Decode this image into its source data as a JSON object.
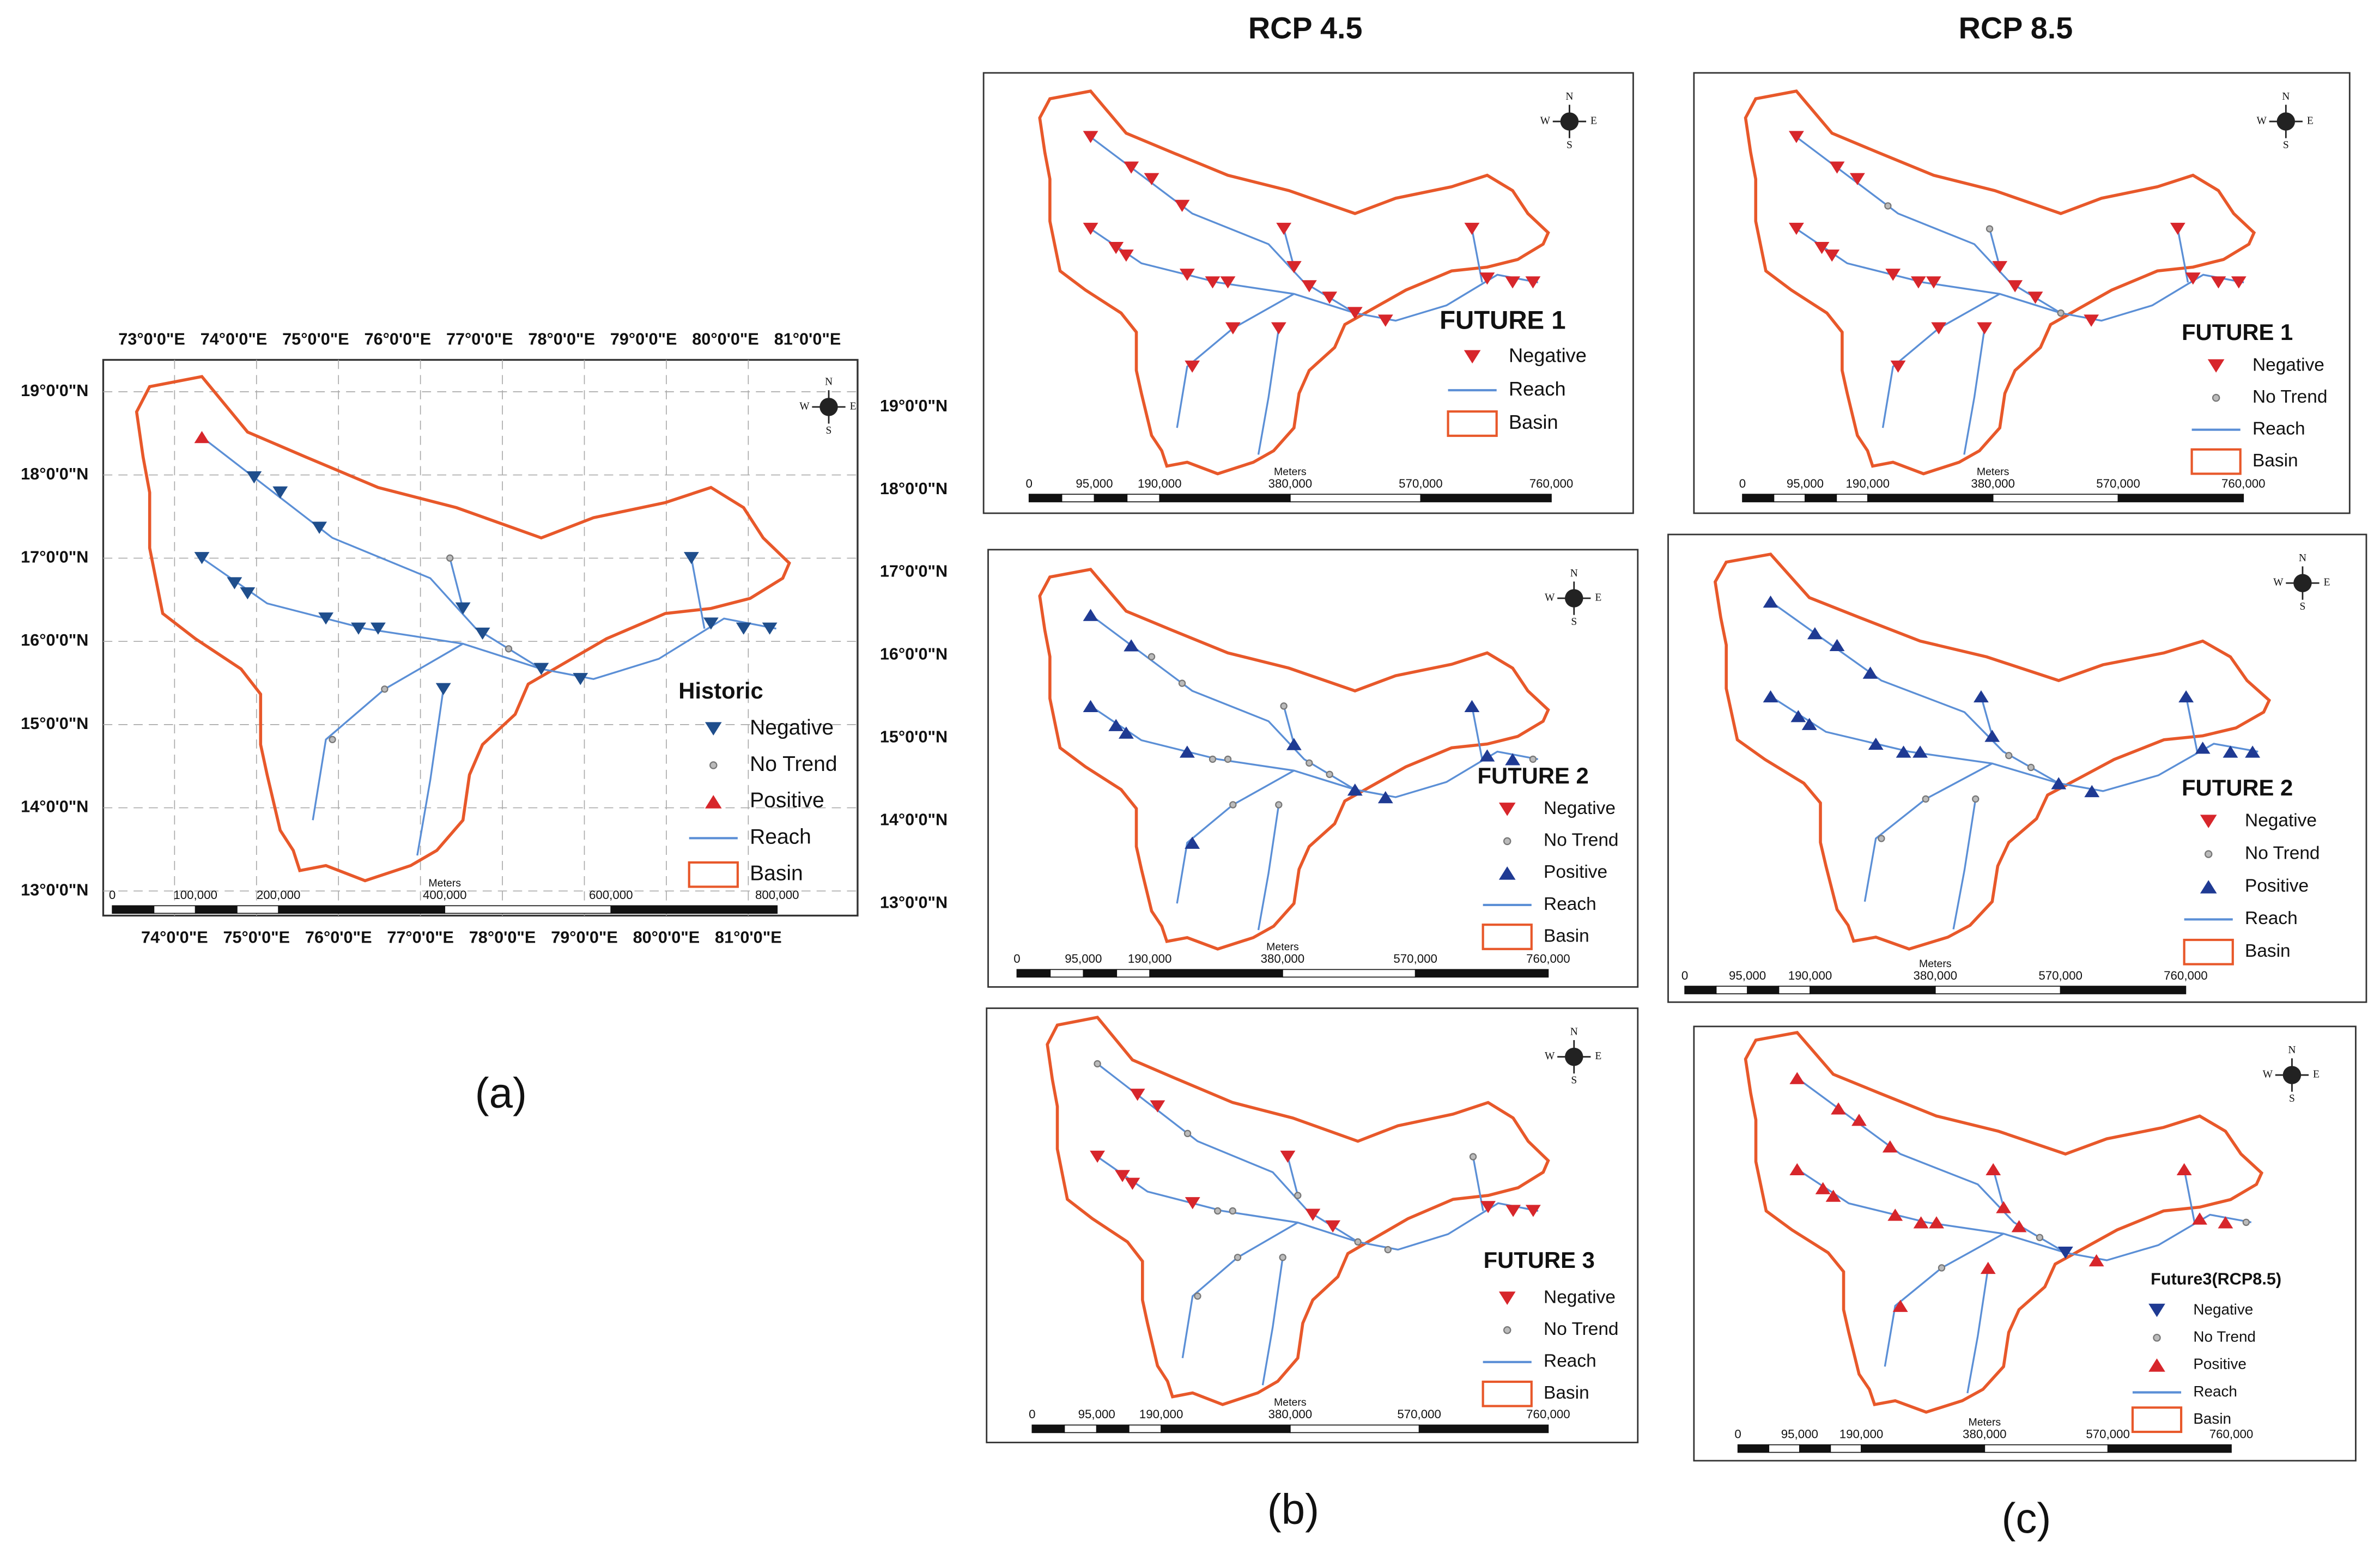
{
  "column_headers": [
    "RCP 4.5",
    "RCP 8.5"
  ],
  "figure_labels": [
    "(a)",
    "(b)",
    "(c)"
  ],
  "compass": [
    "N",
    "S",
    "W",
    "E"
  ],
  "historic": {
    "title": "Historic",
    "legend": [
      {
        "label": "Negative",
        "symbol": "down-triangle",
        "color": "#1f4e8c"
      },
      {
        "label": "No Trend",
        "symbol": "dot",
        "color": "#777777"
      },
      {
        "label": "Positive",
        "symbol": "up-triangle",
        "color": "#d7262b"
      },
      {
        "label": "Reach",
        "symbol": "line",
        "color": "#5b8fd6"
      },
      {
        "label": "Basin",
        "symbol": "box",
        "color": "#e8582a"
      }
    ],
    "top_longitudes": [
      "73°0'0\"E",
      "74°0'0\"E",
      "75°0'0\"E",
      "76°0'0\"E",
      "77°0'0\"E",
      "78°0'0\"E",
      "79°0'0\"E",
      "80°0'0\"E",
      "81°0'0\"E"
    ],
    "bottom_longitudes": [
      "74°0'0\"E",
      "75°0'0\"E",
      "76°0'0\"E",
      "77°0'0\"E",
      "78°0'0\"E",
      "79°0'0\"E",
      "80°0'0\"E",
      "81°0'0\"E"
    ],
    "left_latitudes": [
      "19°0'0\"N",
      "18°0'0\"N",
      "17°0'0\"N",
      "16°0'0\"N",
      "15°0'0\"N",
      "14°0'0\"N",
      "13°0'0\"N"
    ],
    "right_latitudes": [
      "19°0'0\"N",
      "18°0'0\"N",
      "17°0'0\"N",
      "16°0'0\"N",
      "15°0'0\"N",
      "14°0'0\"N",
      "13°0'0\"N"
    ],
    "scale": {
      "unit": "Meters",
      "labels": [
        "0",
        "100,000",
        "200,000",
        "400,000",
        "600,000",
        "800,000"
      ]
    }
  },
  "future_scale": {
    "unit": "Meters",
    "labels": [
      "0",
      "95,000",
      "190,000",
      "380,000",
      "570,000",
      "760,000"
    ]
  },
  "panels": [
    {
      "title": "FUTURE 1",
      "legend": [
        {
          "label": "Negative",
          "symbol": "down-triangle",
          "color": "#d7262b"
        },
        {
          "label": "Reach",
          "symbol": "line",
          "color": "#5b8fd6"
        },
        {
          "label": "Basin",
          "symbol": "box",
          "color": "#e8582a"
        }
      ]
    },
    {
      "title": "FUTURE 1",
      "legend": [
        {
          "label": "Negative",
          "symbol": "down-triangle",
          "color": "#d7262b"
        },
        {
          "label": "No Trend",
          "symbol": "dot",
          "color": "#777777"
        },
        {
          "label": "Reach",
          "symbol": "line",
          "color": "#5b8fd6"
        },
        {
          "label": "Basin",
          "symbol": "box",
          "color": "#e8582a"
        }
      ]
    },
    {
      "title": "FUTURE 2",
      "legend": [
        {
          "label": "Negative",
          "symbol": "down-triangle",
          "color": "#d7262b"
        },
        {
          "label": "No Trend",
          "symbol": "dot",
          "color": "#777777"
        },
        {
          "label": "Positive",
          "symbol": "up-triangle",
          "color": "#1f3a93"
        },
        {
          "label": "Reach",
          "symbol": "line",
          "color": "#5b8fd6"
        },
        {
          "label": "Basin",
          "symbol": "box",
          "color": "#e8582a"
        }
      ]
    },
    {
      "title": "FUTURE 2",
      "legend": [
        {
          "label": "Negative",
          "symbol": "down-triangle",
          "color": "#d7262b"
        },
        {
          "label": "No Trend",
          "symbol": "dot",
          "color": "#777777"
        },
        {
          "label": "Positive",
          "symbol": "up-triangle",
          "color": "#1f3a93"
        },
        {
          "label": "Reach",
          "symbol": "line",
          "color": "#5b8fd6"
        },
        {
          "label": "Basin",
          "symbol": "box",
          "color": "#e8582a"
        }
      ]
    },
    {
      "title": "FUTURE 3",
      "legend": [
        {
          "label": "Negative",
          "symbol": "down-triangle",
          "color": "#d7262b"
        },
        {
          "label": "No Trend",
          "symbol": "dot",
          "color": "#777777"
        },
        {
          "label": "Reach",
          "symbol": "line",
          "color": "#5b8fd6"
        },
        {
          "label": "Basin",
          "symbol": "box",
          "color": "#e8582a"
        }
      ]
    },
    {
      "title": "Future3(RCP8.5)",
      "legend": [
        {
          "label": "Negative",
          "symbol": "down-triangle",
          "color": "#1f3a93"
        },
        {
          "label": "No Trend",
          "symbol": "dot",
          "color": "#777777"
        },
        {
          "label": "Positive",
          "symbol": "up-triangle",
          "color": "#d7262b"
        },
        {
          "label": "Reach",
          "symbol": "line",
          "color": "#5b8fd6"
        },
        {
          "label": "Basin",
          "symbol": "box",
          "color": "#e8582a"
        }
      ]
    }
  ]
}
